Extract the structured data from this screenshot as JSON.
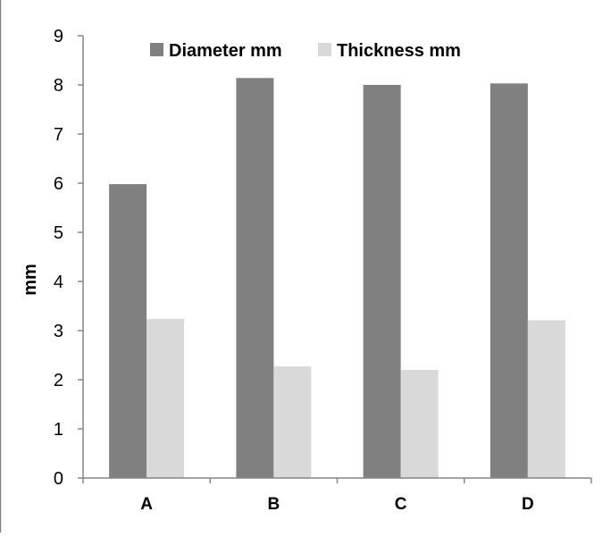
{
  "chart_data": {
    "type": "bar",
    "title": "",
    "xlabel": "",
    "ylabel": "mm",
    "ylim": [
      0,
      9
    ],
    "yticks": [
      0,
      1,
      2,
      3,
      4,
      5,
      6,
      7,
      8,
      9
    ],
    "categories": [
      "A",
      "B",
      "C",
      "D"
    ],
    "series": [
      {
        "name": "Diameter mm",
        "color": "#808080",
        "values": [
          5.98,
          8.14,
          8.0,
          8.03
        ]
      },
      {
        "name": "Thickness mm",
        "color": "#d9d9d9",
        "values": [
          3.24,
          2.27,
          2.2,
          3.21
        ]
      }
    ],
    "legend_position": "top",
    "grid": false
  }
}
